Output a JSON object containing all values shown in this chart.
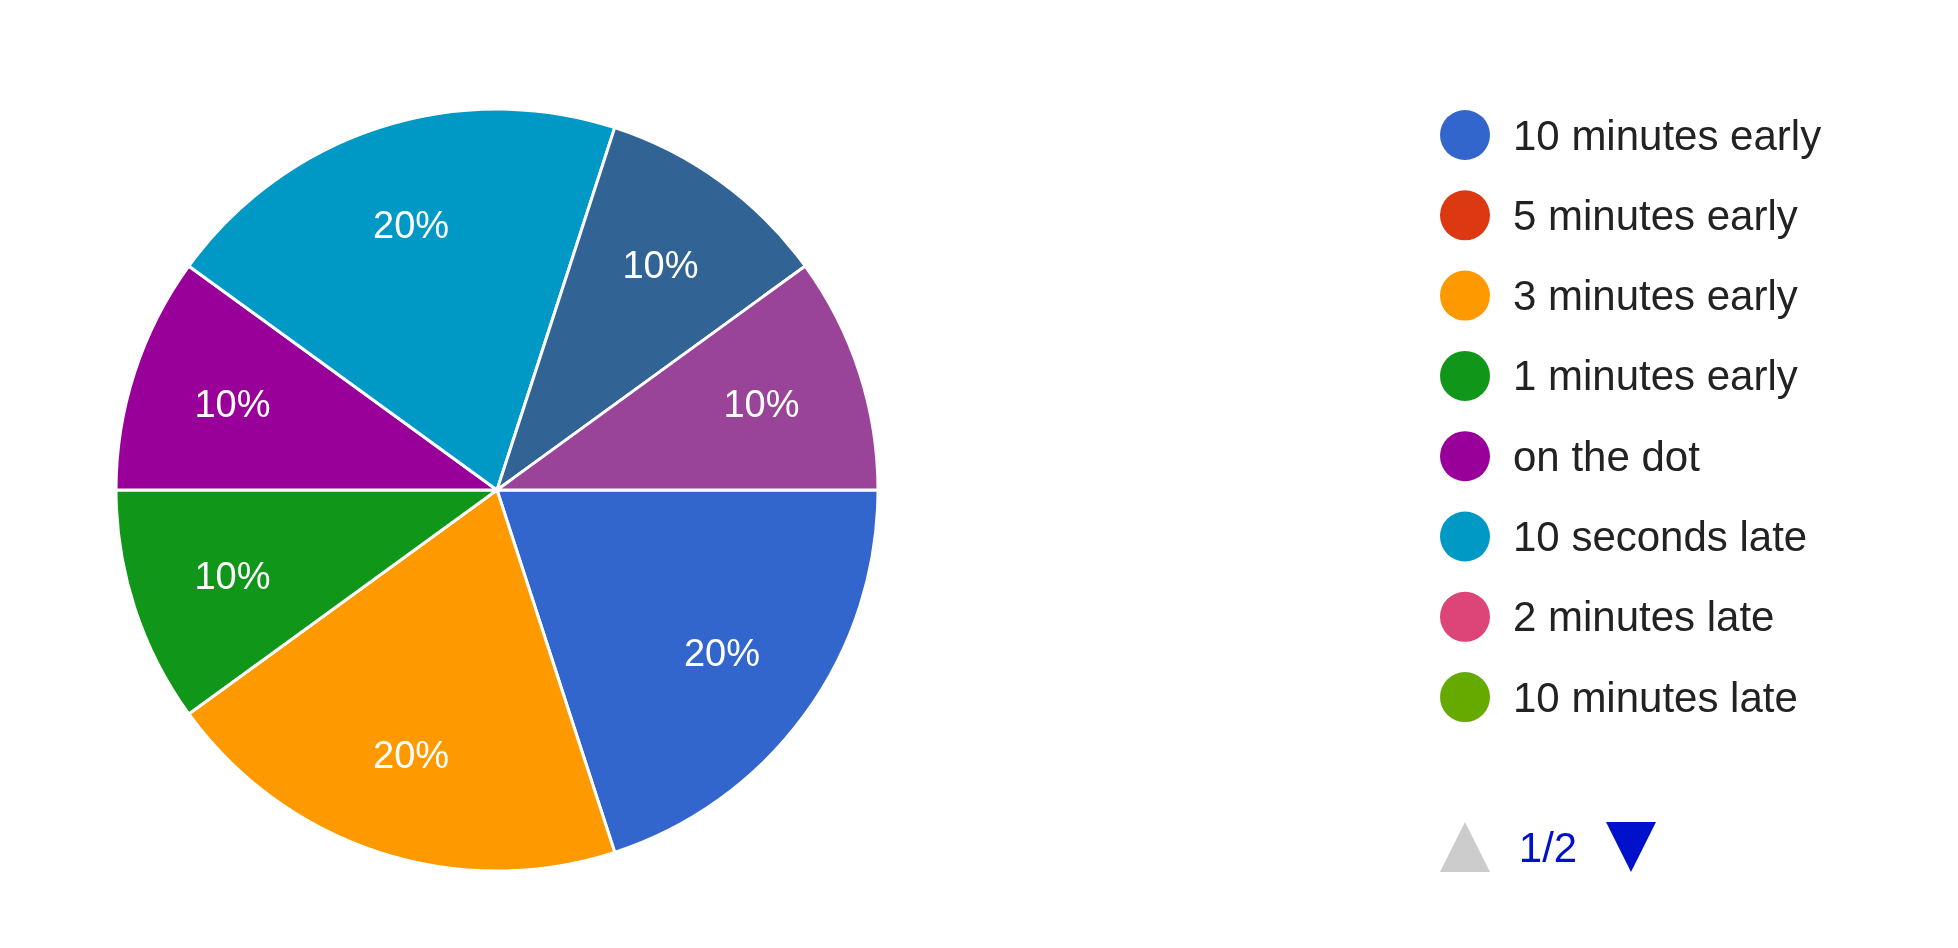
{
  "chart_data": {
    "type": "pie",
    "categories": [
      "10 minutes early",
      "5 minutes early",
      "3 minutes early",
      "1 minutes early",
      "on the dot",
      "10 seconds late",
      "2 minutes late",
      "10 minutes late",
      null,
      null
    ],
    "values": [
      20,
      0,
      20,
      10,
      10,
      20,
      0,
      0,
      10,
      10
    ],
    "colors": [
      "#3366cc",
      "#dc3912",
      "#ff9900",
      "#109618",
      "#990099",
      "#0099c6",
      "#dd4477",
      "#66aa00",
      "#316395",
      "#994499"
    ],
    "value_labels": [
      "20%",
      null,
      "20%",
      "10%",
      "10%",
      "20%",
      null,
      null,
      "10%",
      "10%"
    ],
    "legend": "right",
    "annotations": [
      "1/2"
    ]
  }
}
